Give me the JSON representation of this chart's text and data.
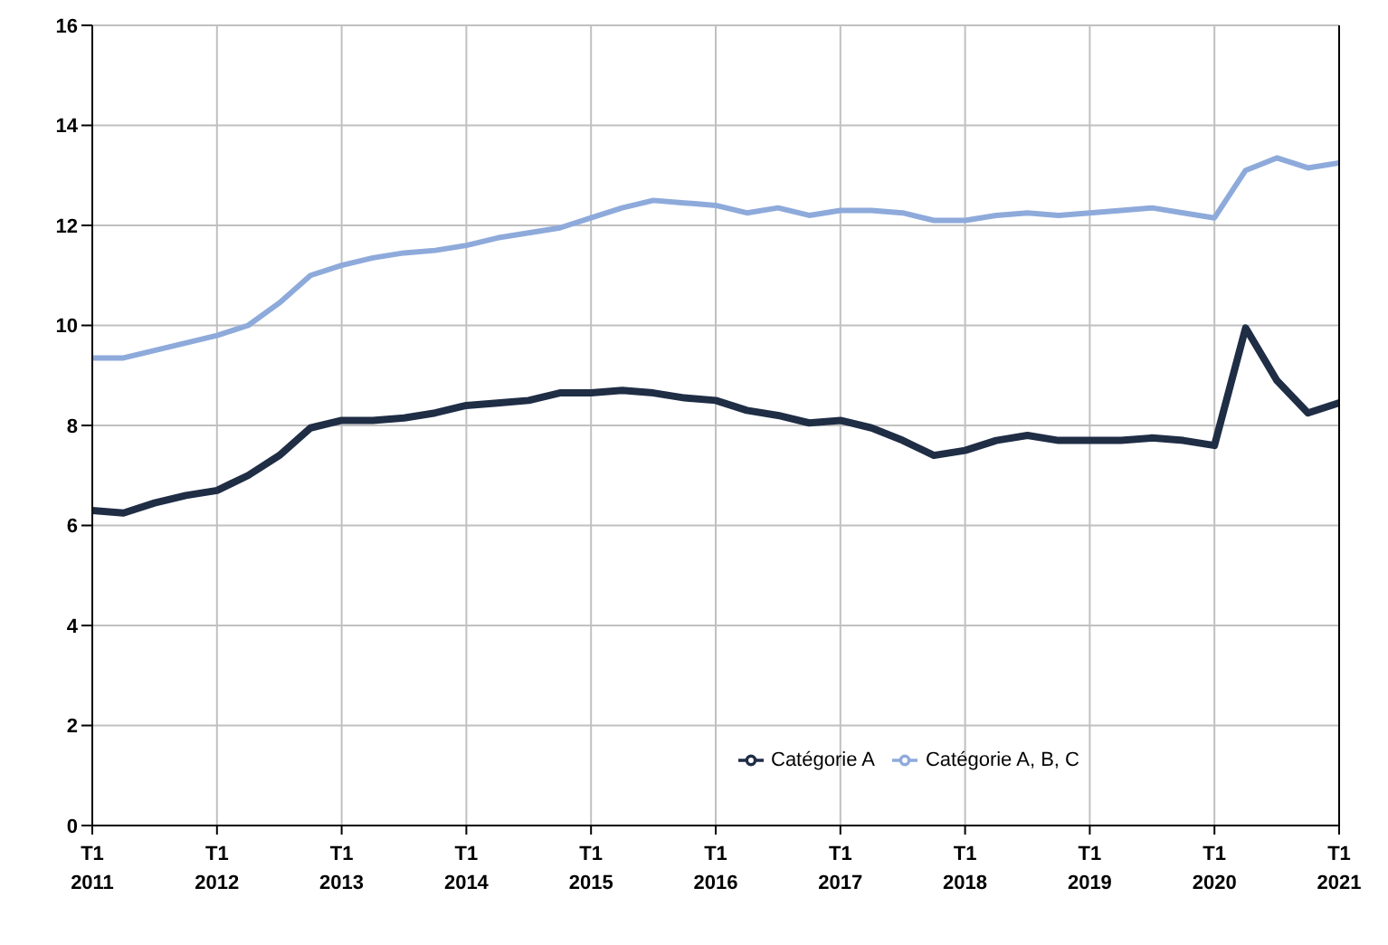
{
  "chart_data": {
    "type": "line",
    "categories": [
      "T1\n2011",
      null,
      null,
      null,
      "T1\n2012",
      null,
      null,
      null,
      "T1\n2013",
      null,
      null,
      null,
      "T1\n2014",
      null,
      null,
      null,
      "T1\n2015",
      null,
      null,
      null,
      "T1\n2016",
      null,
      null,
      null,
      "T1\n2017",
      null,
      null,
      null,
      "T1\n2018",
      null,
      null,
      null,
      "T1\n2019",
      null,
      null,
      null,
      "T1\n2020",
      null,
      null,
      null,
      "T1\n2021"
    ],
    "series": [
      {
        "name": "Catégorie A, B, C",
        "color": "#8eaadb",
        "values": [
          9.35,
          9.35,
          9.5,
          9.65,
          9.8,
          10.0,
          10.45,
          11.0,
          11.2,
          11.35,
          11.45,
          11.5,
          11.6,
          11.75,
          11.85,
          11.95,
          12.15,
          12.35,
          12.5,
          12.45,
          12.4,
          12.25,
          12.35,
          12.2,
          12.3,
          12.3,
          12.25,
          12.1,
          12.1,
          12.2,
          12.25,
          12.2,
          12.25,
          12.3,
          12.35,
          12.25,
          12.15,
          13.1,
          13.35,
          13.15,
          13.25
        ]
      },
      {
        "name": "Catégorie A",
        "color": "#1f2d45",
        "values": [
          6.3,
          6.25,
          6.45,
          6.6,
          6.7,
          7.0,
          7.4,
          7.95,
          8.1,
          8.1,
          8.15,
          8.25,
          8.4,
          8.45,
          8.5,
          8.65,
          8.65,
          8.7,
          8.65,
          8.55,
          8.5,
          8.3,
          8.2,
          8.05,
          8.1,
          7.95,
          7.7,
          7.4,
          7.5,
          7.7,
          7.8,
          7.7,
          7.7,
          7.7,
          7.75,
          7.7,
          7.6,
          9.95,
          8.9,
          8.25,
          8.45
        ]
      }
    ],
    "ylim": [
      0,
      16
    ],
    "yticks": [
      0,
      2,
      4,
      6,
      8,
      10,
      12,
      14,
      16
    ],
    "grid": true,
    "legend": "bottom right",
    "marker": "none",
    "line_style": "solid"
  }
}
